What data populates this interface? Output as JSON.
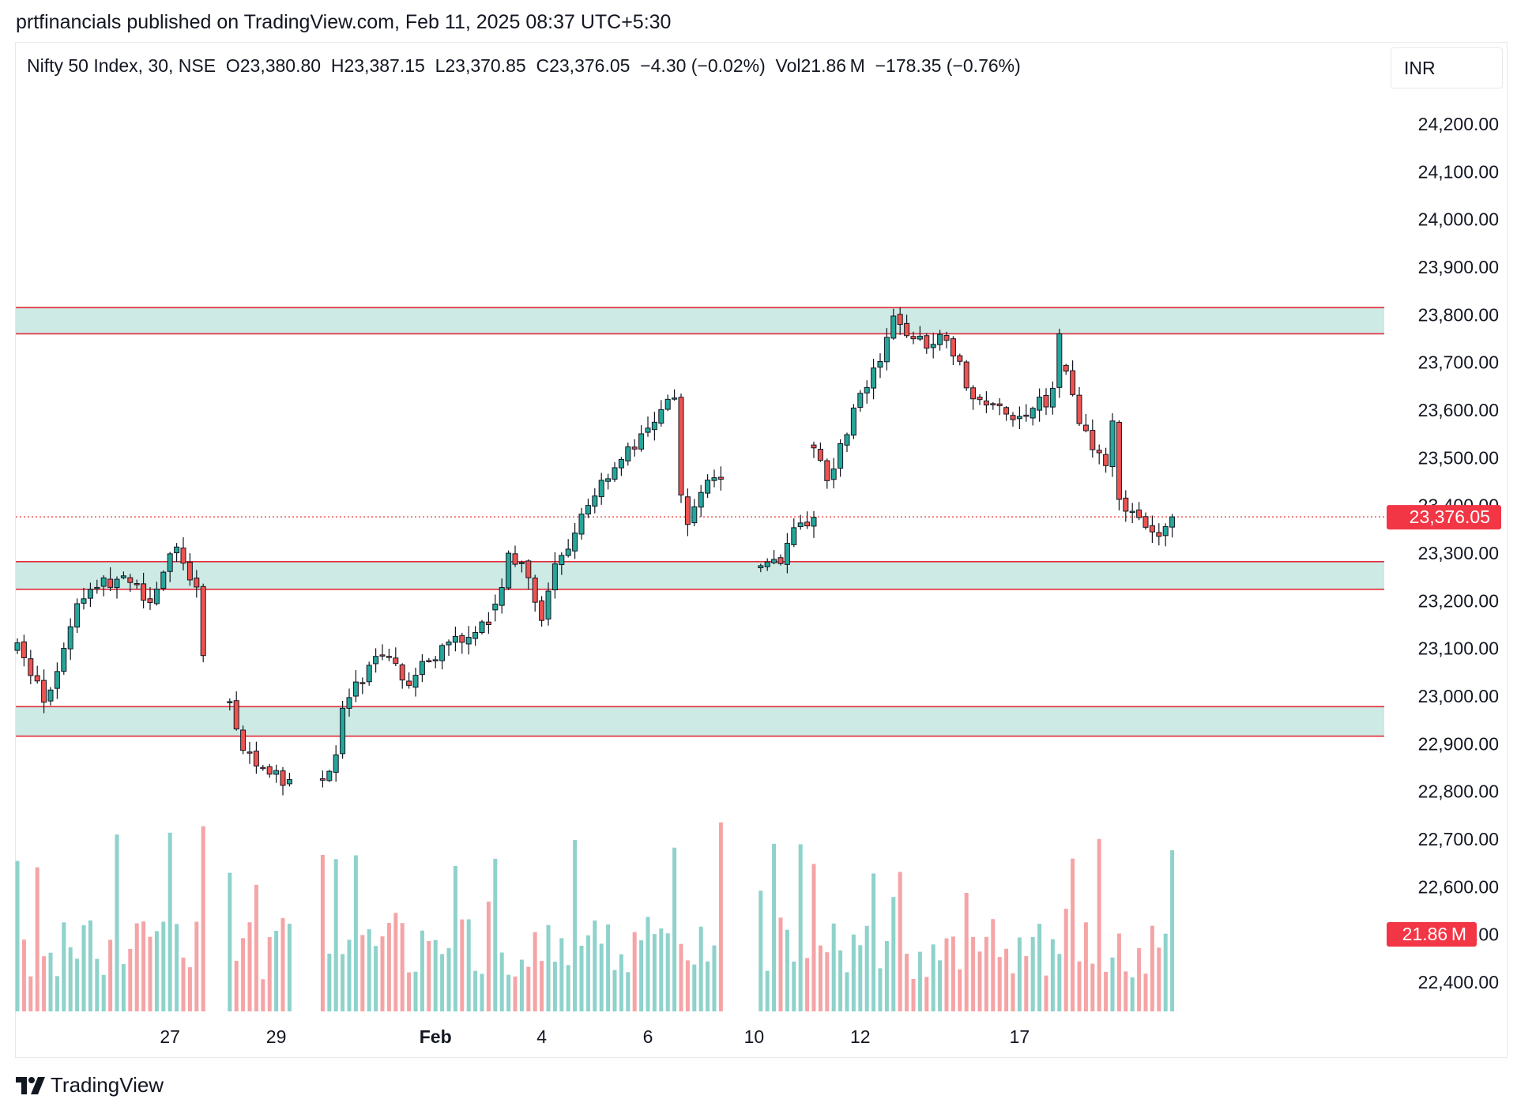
{
  "header": {
    "published": "prtfinancials published on TradingView.com, Feb 11, 2025 08:37 UTC+5:30"
  },
  "legend": {
    "symbol": "Nifty 50 Index, 30, NSE",
    "open": "O23,380.80",
    "high": "H23,387.15",
    "low": "L23,370.85",
    "close": "C23,376.05",
    "change": "−4.30 (−0.02%)",
    "volume": "Vol21.86 M",
    "day_change": "−178.35 (−0.76%)"
  },
  "currency": "INR",
  "footer": {
    "brand": "TradingView",
    "logo_icon": "tradingview-logo-icon"
  },
  "colors": {
    "up": "#26a69a",
    "down": "#ef5350",
    "zone_fill": "#cdeae5",
    "zone_line": "#e02c3a",
    "last_price_label": "#f23645",
    "volume_up": "#8ed2cb",
    "volume_down": "#f5a4a6"
  },
  "chart_data": {
    "type": "candlestick",
    "symbol": "Nifty 50 Index",
    "interval": "30",
    "exchange": "NSE",
    "y_axis_labels": [
      "24,200.00",
      "24,100.00",
      "24,000.00",
      "23,900.00",
      "23,800.00",
      "23,700.00",
      "23,600.00",
      "23,500.00",
      "23,400.00",
      "23,300.00",
      "23,200.00",
      "23,100.00",
      "23,000.00",
      "22,900.00",
      "22,800.00",
      "22,700.00",
      "22,600.00",
      "22,500.00",
      "22,400.00"
    ],
    "y_axis_values": [
      24200,
      24100,
      24000,
      23900,
      23800,
      23700,
      23600,
      23500,
      23400,
      23300,
      23200,
      23100,
      23000,
      22900,
      22800,
      22700,
      22600,
      22500,
      22400
    ],
    "x_axis_labels": [
      {
        "label": "27",
        "bar": 23,
        "bold": false
      },
      {
        "label": "29",
        "bar": 39,
        "bold": false
      },
      {
        "label": "Feb",
        "bar": 63,
        "bold": true
      },
      {
        "label": "4",
        "bar": 79,
        "bold": false
      },
      {
        "label": "6",
        "bar": 95,
        "bold": false
      },
      {
        "label": "10",
        "bar": 111,
        "bold": false
      },
      {
        "label": "12",
        "bar": 127,
        "bold": false
      },
      {
        "label": "17",
        "bar": 151,
        "bold": false
      }
    ],
    "ylim": [
      22360,
      24305
    ],
    "bar_count": 168,
    "last_price": 23376.05,
    "last_price_label": "23,376.05",
    "last_volume_label": "21.86 M",
    "zones": [
      {
        "top": 23815,
        "bottom": 23760
      },
      {
        "top": 23282,
        "bottom": 23224
      },
      {
        "top": 22978,
        "bottom": 22916
      }
    ],
    "sessions": [
      {
        "start_bar": 0,
        "start_price": 23100,
        "end_price": 23085,
        "path": [
          [
            0,
            23100
          ],
          [
            3,
            23020
          ],
          [
            4,
            22985
          ],
          [
            6,
            23050
          ],
          [
            9,
            23200
          ],
          [
            12,
            23235
          ],
          [
            16,
            23245
          ],
          [
            20,
            23205
          ],
          [
            24,
            23315
          ],
          [
            27,
            23215
          ],
          [
            28,
            23085
          ]
        ]
      },
      {
        "start_bar": 32,
        "start_price": 22990,
        "end_price": 22825,
        "path": [
          [
            0,
            22990
          ],
          [
            2,
            22880
          ],
          [
            5,
            22860
          ],
          [
            7,
            22830
          ],
          [
            9,
            22820
          ]
        ]
      },
      {
        "start_bar": 46,
        "start_price": 22830,
        "end_price": 23150,
        "path": [
          [
            0,
            22830
          ],
          [
            2,
            22865
          ],
          [
            3,
            22970
          ],
          [
            5,
            23020
          ],
          [
            8,
            23075
          ],
          [
            10,
            23090
          ],
          [
            13,
            23010
          ],
          [
            15,
            23060
          ],
          [
            18,
            23095
          ],
          [
            20,
            23115
          ],
          [
            22,
            23130
          ],
          [
            25,
            23180
          ]
        ]
      },
      {
        "start_bar": 72,
        "start_price": 23180,
        "end_price": 23455,
        "path": [
          [
            0,
            23180
          ],
          [
            2,
            23300
          ],
          [
            4,
            23270
          ],
          [
            6,
            23210
          ],
          [
            7,
            23150
          ],
          [
            9,
            23270
          ],
          [
            11,
            23300
          ],
          [
            13,
            23380
          ],
          [
            16,
            23450
          ],
          [
            19,
            23500
          ],
          [
            22,
            23540
          ],
          [
            25,
            23600
          ],
          [
            27,
            23620
          ],
          [
            28,
            23420
          ],
          [
            29,
            23350
          ],
          [
            31,
            23440
          ],
          [
            34,
            23470
          ]
        ]
      },
      {
        "start_bar": 112,
        "start_price": 23270,
        "end_price": 23375,
        "path": [
          [
            0,
            23270
          ],
          [
            3,
            23290
          ],
          [
            5,
            23350
          ],
          [
            8,
            23375
          ]
        ]
      },
      {
        "start_bar": 120,
        "start_price": 23530,
        "end_price": 23760,
        "path": [
          [
            0,
            23530
          ],
          [
            2,
            23460
          ],
          [
            4,
            23520
          ],
          [
            6,
            23600
          ],
          [
            8,
            23650
          ],
          [
            10,
            23700
          ],
          [
            12,
            23790
          ],
          [
            14,
            23760
          ],
          [
            17,
            23740
          ],
          [
            20,
            23760
          ],
          [
            22,
            23690
          ],
          [
            24,
            23620
          ],
          [
            27,
            23610
          ],
          [
            30,
            23580
          ],
          [
            32,
            23590
          ],
          [
            34,
            23640
          ],
          [
            35,
            23600
          ],
          [
            37,
            23690
          ]
        ]
      },
      {
        "start_bar": 158,
        "start_price": 23690,
        "end_price": 23376,
        "path": [
          [
            0,
            23690
          ],
          [
            2,
            23580
          ],
          [
            4,
            23530
          ],
          [
            6,
            23490
          ],
          [
            7,
            23580
          ],
          [
            8,
            23420
          ],
          [
            10,
            23380
          ],
          [
            12,
            23350
          ],
          [
            14,
            23330
          ],
          [
            16,
            23376
          ]
        ]
      }
    ]
  }
}
